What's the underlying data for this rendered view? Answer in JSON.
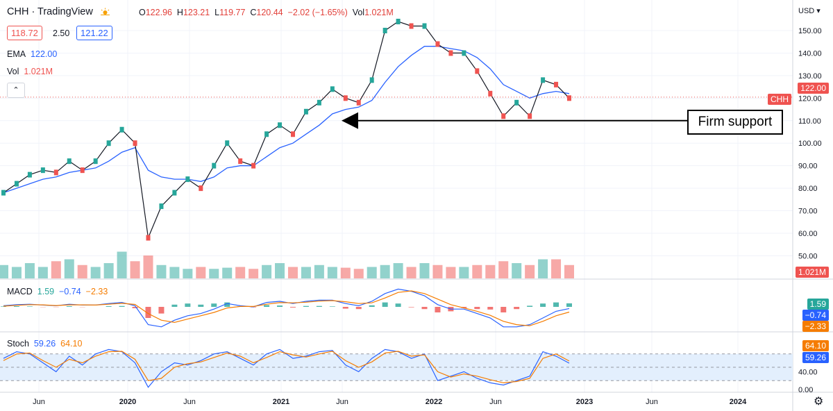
{
  "header": {
    "symbol_title": "CHH · TradingView",
    "open_label": "O",
    "open": "122.96",
    "high_label": "H",
    "high": "123.21",
    "low_label": "L",
    "low": "119.77",
    "close_label": "C",
    "close": "120.44",
    "change": "−2.02 (−1.65%)",
    "vol_label": "Vol",
    "vol": "1.021M",
    "bid": "118.72",
    "spread": "2.50",
    "ask": "121.22"
  },
  "legend": {
    "ema_label": "EMA",
    "ema_value": "122.00",
    "vol_label": "Vol",
    "vol_value": "1.021M",
    "macd_label": "MACD",
    "macd_hist": "1.59",
    "macd_line": "−0.74",
    "macd_signal": "−2.33",
    "stoch_label": "Stoch",
    "stoch_k": "59.26",
    "stoch_d": "64.10"
  },
  "axis": {
    "currency": "USD",
    "price_ticks": [
      "150.00",
      "140.00",
      "130.00",
      "120.00",
      "110.00",
      "100.00",
      "90.00",
      "80.00",
      "70.00",
      "60.00",
      "50.00"
    ],
    "stoch_ticks": [
      "40.00",
      "0.00"
    ],
    "x_ticks": [
      "Jun",
      "2020",
      "Jun",
      "2021",
      "Jun",
      "2022",
      "Jun",
      "2023",
      "Jun",
      "2024"
    ]
  },
  "tags": {
    "symbol": "CHH",
    "ema": "122.00",
    "volume": "1.021M",
    "macd_hist": "1.59",
    "macd_line": "−0.74",
    "macd_signal": "−2.33",
    "stoch_d": "64.10",
    "stoch_k": "59.26"
  },
  "annotation": {
    "text": "Firm support",
    "price": 110
  },
  "colors": {
    "up": "#26a69a",
    "down": "#ef5350",
    "ema": "#2962ff",
    "macd_line": "#2962ff",
    "signal": "#f57c00",
    "stoch_k": "#2962ff",
    "stoch_d": "#f57c00",
    "stoch_band": "#e3effd"
  },
  "chart_data": {
    "type": "line",
    "title": "CHH",
    "x": [
      "2019-04",
      "2019-05",
      "2019-06",
      "2019-07",
      "2019-08",
      "2019-09",
      "2019-10",
      "2019-11",
      "2019-12",
      "2020-01",
      "2020-02",
      "2020-03",
      "2020-04",
      "2020-05",
      "2020-06",
      "2020-07",
      "2020-08",
      "2020-09",
      "2020-10",
      "2020-11",
      "2020-12",
      "2021-01",
      "2021-02",
      "2021-03",
      "2021-04",
      "2021-05",
      "2021-06",
      "2021-07",
      "2021-08",
      "2021-09",
      "2021-10",
      "2021-11",
      "2021-12",
      "2022-01",
      "2022-02",
      "2022-03",
      "2022-04",
      "2022-05",
      "2022-06",
      "2022-07",
      "2022-08",
      "2022-09",
      "2022-10",
      "2022-11"
    ],
    "series": [
      {
        "name": "CHH",
        "values": [
          78,
          82,
          86,
          88,
          87,
          92,
          88,
          92,
          100,
          106,
          100,
          58,
          72,
          78,
          84,
          80,
          90,
          100,
          92,
          90,
          104,
          108,
          104,
          114,
          118,
          124,
          120,
          118,
          128,
          150,
          154,
          152,
          152,
          144,
          140,
          140,
          132,
          122,
          112,
          118,
          112,
          128,
          126,
          120
        ]
      },
      {
        "name": "EMA",
        "values": [
          78,
          80,
          82,
          84,
          85,
          87,
          88,
          89,
          92,
          96,
          98,
          88,
          85,
          84,
          84,
          83,
          85,
          89,
          90,
          90,
          94,
          98,
          100,
          104,
          108,
          113,
          115,
          116,
          119,
          127,
          134,
          139,
          143,
          143,
          142,
          141,
          138,
          133,
          126,
          123,
          120,
          122,
          123,
          122
        ]
      }
    ],
    "ylim": [
      47,
      160
    ],
    "volume": [
      35,
      30,
      40,
      30,
      45,
      50,
      35,
      30,
      40,
      70,
      45,
      60,
      35,
      30,
      25,
      30,
      25,
      28,
      30,
      25,
      35,
      40,
      30,
      30,
      35,
      30,
      28,
      25,
      30,
      35,
      40,
      30,
      40,
      35,
      30,
      30,
      35,
      35,
      45,
      40,
      35,
      50,
      50,
      35
    ],
    "macd": {
      "line": [
        0.5,
        1.0,
        1.2,
        0.8,
        0.5,
        1.2,
        0.8,
        0.8,
        1.5,
        2.0,
        0.5,
        -8,
        -9,
        -6,
        -4,
        -3,
        -1,
        1.5,
        0.5,
        0,
        2,
        2.5,
        1.5,
        2.5,
        3,
        3,
        1.5,
        0.5,
        2.5,
        6,
        8,
        7,
        5,
        1,
        -1,
        -1,
        -3,
        -5,
        -9,
        -9,
        -8,
        -5,
        -2,
        -0.74
      ],
      "signal": [
        0.3,
        0.7,
        1.0,
        0.9,
        0.6,
        0.9,
        0.9,
        0.8,
        1.2,
        1.6,
        1.1,
        -3,
        -6,
        -7,
        -5.5,
        -4,
        -2.5,
        -0.5,
        0.2,
        0.2,
        1.2,
        1.9,
        1.8,
        2.1,
        2.6,
        2.8,
        2.3,
        1.5,
        1.8,
        4,
        6.5,
        7.2,
        6,
        3.5,
        1,
        -0.5,
        -2,
        -3.8,
        -6.5,
        -8,
        -8.5,
        -6.5,
        -4,
        -2.33
      ],
      "hist": [
        0.2,
        0.3,
        0.2,
        -0.1,
        -0.1,
        0.3,
        -0.1,
        0,
        0.3,
        0.4,
        -0.6,
        -5,
        -3,
        1,
        1.5,
        1,
        1.5,
        2,
        0.3,
        -0.2,
        0.8,
        0.6,
        -0.3,
        0.4,
        0.4,
        0.2,
        -0.8,
        -1,
        0.7,
        2,
        1.5,
        -0.2,
        -1,
        -2.5,
        -2,
        -0.5,
        -1,
        -1.2,
        -2.5,
        -1,
        0.5,
        1.5,
        2,
        1.59
      ]
    },
    "stochastic": {
      "k": [
        70,
        85,
        80,
        60,
        40,
        75,
        55,
        80,
        90,
        85,
        60,
        5,
        40,
        60,
        55,
        65,
        80,
        85,
        70,
        55,
        80,
        90,
        70,
        75,
        85,
        88,
        55,
        40,
        70,
        90,
        85,
        70,
        80,
        20,
        30,
        40,
        25,
        15,
        10,
        20,
        30,
        85,
        75,
        59.26
      ],
      "d": [
        65,
        80,
        82,
        65,
        50,
        68,
        60,
        75,
        85,
        86,
        68,
        20,
        25,
        50,
        58,
        62,
        72,
        82,
        75,
        60,
        72,
        85,
        78,
        73,
        80,
        86,
        65,
        50,
        62,
        82,
        86,
        75,
        78,
        40,
        28,
        35,
        30,
        22,
        15,
        18,
        25,
        70,
        80,
        64.1
      ],
      "upper": 80,
      "lower": 20
    }
  }
}
